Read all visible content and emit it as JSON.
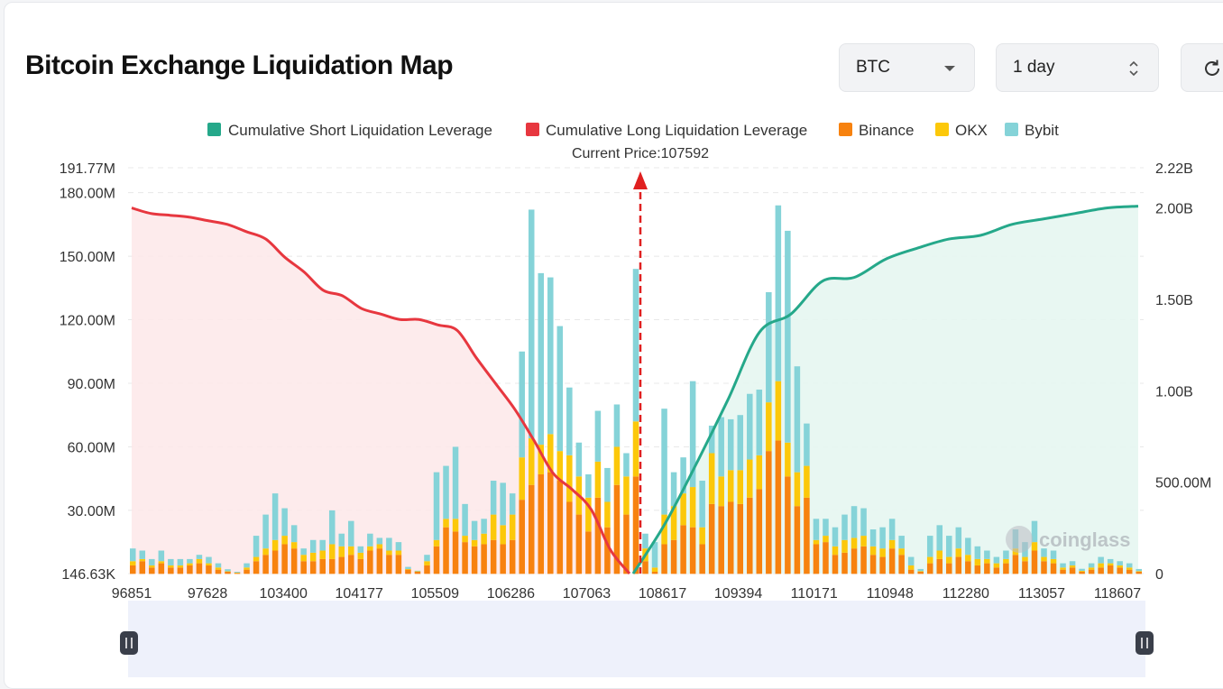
{
  "title": "Bitcoin Exchange Liquidation Map",
  "controls": {
    "symbol": "BTC",
    "period": "1 day",
    "refresh_icon": "refresh-icon"
  },
  "colors": {
    "short_line": "#25a88a",
    "short_fill": "#e6f6f1",
    "long_line": "#e7373f",
    "long_fill": "#fde7e9",
    "binance": "#f7820f",
    "okx": "#fcc80a",
    "bybit": "#85d3d8",
    "current_price": "#e02020"
  },
  "chart_data": {
    "type": "bar",
    "title": "",
    "current_price_label": "Current Price:107592",
    "current_price": 107592,
    "legend": [
      {
        "label": "Cumulative Short Liquidation Leverage",
        "color": "#25a88a"
      },
      {
        "label": "Cumulative Long Liquidation Leverage",
        "color": "#e7373f"
      },
      {
        "label": "Binance",
        "color": "#f7820f"
      },
      {
        "label": "OKX",
        "color": "#fcc80a"
      },
      {
        "label": "Bybit",
        "color": "#85d3d8"
      }
    ],
    "legend_position": "top-center",
    "x_tick_labels": [
      "96851",
      "97628",
      "103400",
      "104177",
      "105509",
      "106286",
      "107063",
      "108617",
      "109394",
      "110171",
      "110948",
      "112280",
      "113057",
      "118607"
    ],
    "left_axis": {
      "tick_labels": [
        "191.77M",
        "180.00M",
        "150.00M",
        "120.00M",
        "90.00M",
        "60.00M",
        "30.00M",
        "146.63K"
      ],
      "tick_values": [
        191.77,
        180,
        150,
        120,
        90,
        60,
        30,
        0.14663
      ],
      "range_millions": [
        0.14663,
        191.77
      ]
    },
    "right_axis": {
      "tick_labels": [
        "2.22B",
        "2.00B",
        "1.50B",
        "1.00B",
        "500.00M",
        "0"
      ],
      "tick_values": [
        2.22,
        2.0,
        1.5,
        1.0,
        0.5,
        0
      ],
      "range_billions": [
        0,
        2.22
      ]
    },
    "grid": "horizontal dashed",
    "bar_units": "millions USD",
    "bars": {
      "binance": [
        4,
        6,
        3,
        5,
        3,
        3,
        4,
        5,
        4,
        2,
        1,
        0.4,
        2,
        6,
        9,
        11,
        14,
        12,
        6,
        6,
        7,
        7,
        8,
        9,
        7,
        11,
        12,
        9,
        9,
        2,
        1,
        4,
        13,
        22,
        20,
        15,
        13,
        14,
        16,
        14,
        16,
        35,
        42,
        47,
        48,
        44,
        34,
        28,
        20,
        36,
        22,
        42,
        28,
        46,
        6,
        1,
        14,
        16,
        23,
        22,
        14,
        33,
        32,
        34,
        33,
        36,
        40,
        58,
        63,
        46,
        32,
        36,
        14,
        15,
        9,
        10,
        12,
        13,
        9,
        8,
        12,
        9,
        2,
        1,
        5,
        7,
        5,
        8,
        6,
        4,
        5,
        3,
        5,
        9,
        6,
        11,
        6,
        5,
        2,
        3,
        1,
        2,
        3,
        4,
        3,
        2,
        1
      ],
      "okx": [
        2,
        1,
        1,
        1,
        1,
        1,
        1,
        2,
        1,
        1,
        0.2,
        0.2,
        1,
        2,
        3,
        5,
        4,
        3,
        3,
        4,
        4,
        7,
        5,
        4,
        3,
        2,
        2,
        2,
        2,
        0.3,
        0.2,
        2,
        3,
        4,
        6,
        3,
        3,
        5,
        12,
        9,
        12,
        20,
        22,
        14,
        18,
        14,
        22,
        18,
        16,
        17,
        12,
        18,
        18,
        26,
        6,
        2,
        14,
        16,
        15,
        19,
        8,
        24,
        14,
        15,
        16,
        18,
        16,
        23,
        28,
        16,
        16,
        15,
        2,
        3,
        4,
        6,
        5,
        5,
        4,
        4,
        4,
        3,
        2,
        0.3,
        3,
        4,
        3,
        4,
        3,
        3,
        2,
        2,
        2,
        3,
        2,
        4,
        2,
        2,
        1,
        1,
        0.4,
        1,
        2,
        1,
        1,
        1,
        0.3
      ],
      "bybit": [
        6,
        4,
        3,
        5,
        3,
        3,
        2,
        2,
        3,
        2,
        1,
        0.4,
        2,
        10,
        16,
        22,
        13,
        8,
        3,
        6,
        5,
        16,
        6,
        12,
        3,
        6,
        3,
        6,
        4,
        1,
        0.3,
        3,
        32,
        25,
        34,
        15,
        9,
        7,
        16,
        20,
        10,
        50,
        108,
        81,
        74,
        59,
        32,
        16,
        11,
        24,
        16,
        20,
        11,
        72,
        7,
        12,
        50,
        16,
        17,
        50,
        22,
        13,
        28,
        24,
        26,
        31,
        31,
        52,
        83,
        100,
        50,
        20,
        10,
        8,
        9,
        12,
        15,
        13,
        8,
        10,
        10,
        6,
        4,
        1,
        10,
        12,
        10,
        10,
        8,
        6,
        4,
        3,
        4,
        9,
        7,
        10,
        4,
        4,
        2,
        2,
        1,
        2,
        3,
        2,
        2,
        2,
        1
      ]
    },
    "cumulative_long_billions": [
      2.0,
      1.97,
      1.96,
      1.95,
      1.93,
      1.91,
      1.87,
      1.83,
      1.73,
      1.65,
      1.55,
      1.52,
      1.45,
      1.42,
      1.39,
      1.39,
      1.36,
      1.33,
      1.18,
      1.04,
      0.9,
      0.73,
      0.55,
      0.46,
      0.35,
      0.13,
      0.0
    ],
    "cumulative_short_billions": [
      0.0,
      0.27,
      0.6,
      0.95,
      1.32,
      1.42,
      1.6,
      1.62,
      1.72,
      1.78,
      1.83,
      1.85,
      1.91,
      1.94,
      1.97,
      2.0,
      2.01
    ]
  }
}
